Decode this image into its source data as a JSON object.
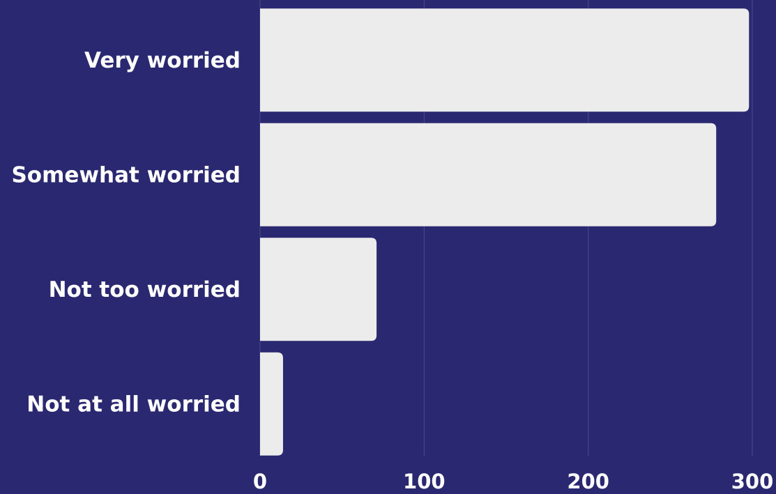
{
  "chart_data": {
    "type": "bar",
    "orientation": "horizontal",
    "categories": [
      "Very worried",
      "Somewhat worried",
      "Not too worried",
      "Not at all worried"
    ],
    "values": [
      298,
      278,
      71,
      14
    ],
    "color": "#ececec",
    "xlim": [
      0,
      300
    ],
    "xticks": [
      0,
      100,
      200,
      300
    ],
    "grid": true
  }
}
